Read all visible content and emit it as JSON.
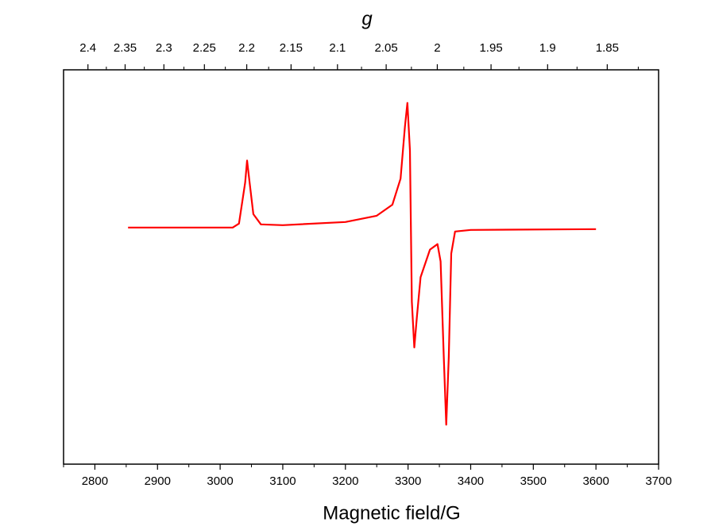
{
  "chart_data": {
    "type": "line",
    "xlabel": "Magnetic field/G",
    "x2label": "g",
    "x": [
      2853,
      3020,
      3030,
      3040,
      3043,
      3047,
      3053,
      3065,
      3100,
      3200,
      3250,
      3275,
      3288,
      3295,
      3299,
      3303,
      3306,
      3310,
      3314,
      3320,
      3335,
      3347,
      3352,
      3357,
      3361,
      3365,
      3369,
      3375,
      3400,
      3600
    ],
    "values": [
      0,
      0,
      0.05,
      0.57,
      0.85,
      0.57,
      0.17,
      0.04,
      0.03,
      0.07,
      0.15,
      0.29,
      0.62,
      1.28,
      1.58,
      0.98,
      -0.94,
      -1.52,
      -1.14,
      -0.63,
      -0.28,
      -0.21,
      -0.43,
      -1.64,
      -2.5,
      -1.64,
      -0.33,
      -0.05,
      -0.03,
      -0.02
    ],
    "color": "#ff0000",
    "xlim": [
      2750,
      3700
    ],
    "xticks": [
      2800,
      2900,
      3000,
      3100,
      3200,
      3300,
      3400,
      3500,
      3600,
      3700
    ],
    "xminorticks": [
      2750,
      2850,
      2950,
      3050,
      3150,
      3250,
      3350,
      3450,
      3550,
      3650
    ],
    "x2lim": [
      2.434,
      1.809
    ],
    "x2scale": "reciprocal",
    "x2ticks": [
      2.4,
      2.35,
      2.3,
      2.25,
      2.2,
      2.15,
      2.1,
      2.05,
      2,
      1.95,
      1.9,
      1.85
    ],
    "x2minorticks": [
      2.375,
      2.325,
      2.275,
      2.225,
      2.175,
      2.125,
      2.075,
      2.025,
      1.975,
      1.925,
      1.875,
      1.825
    ],
    "ylim": [
      -3,
      2
    ]
  }
}
